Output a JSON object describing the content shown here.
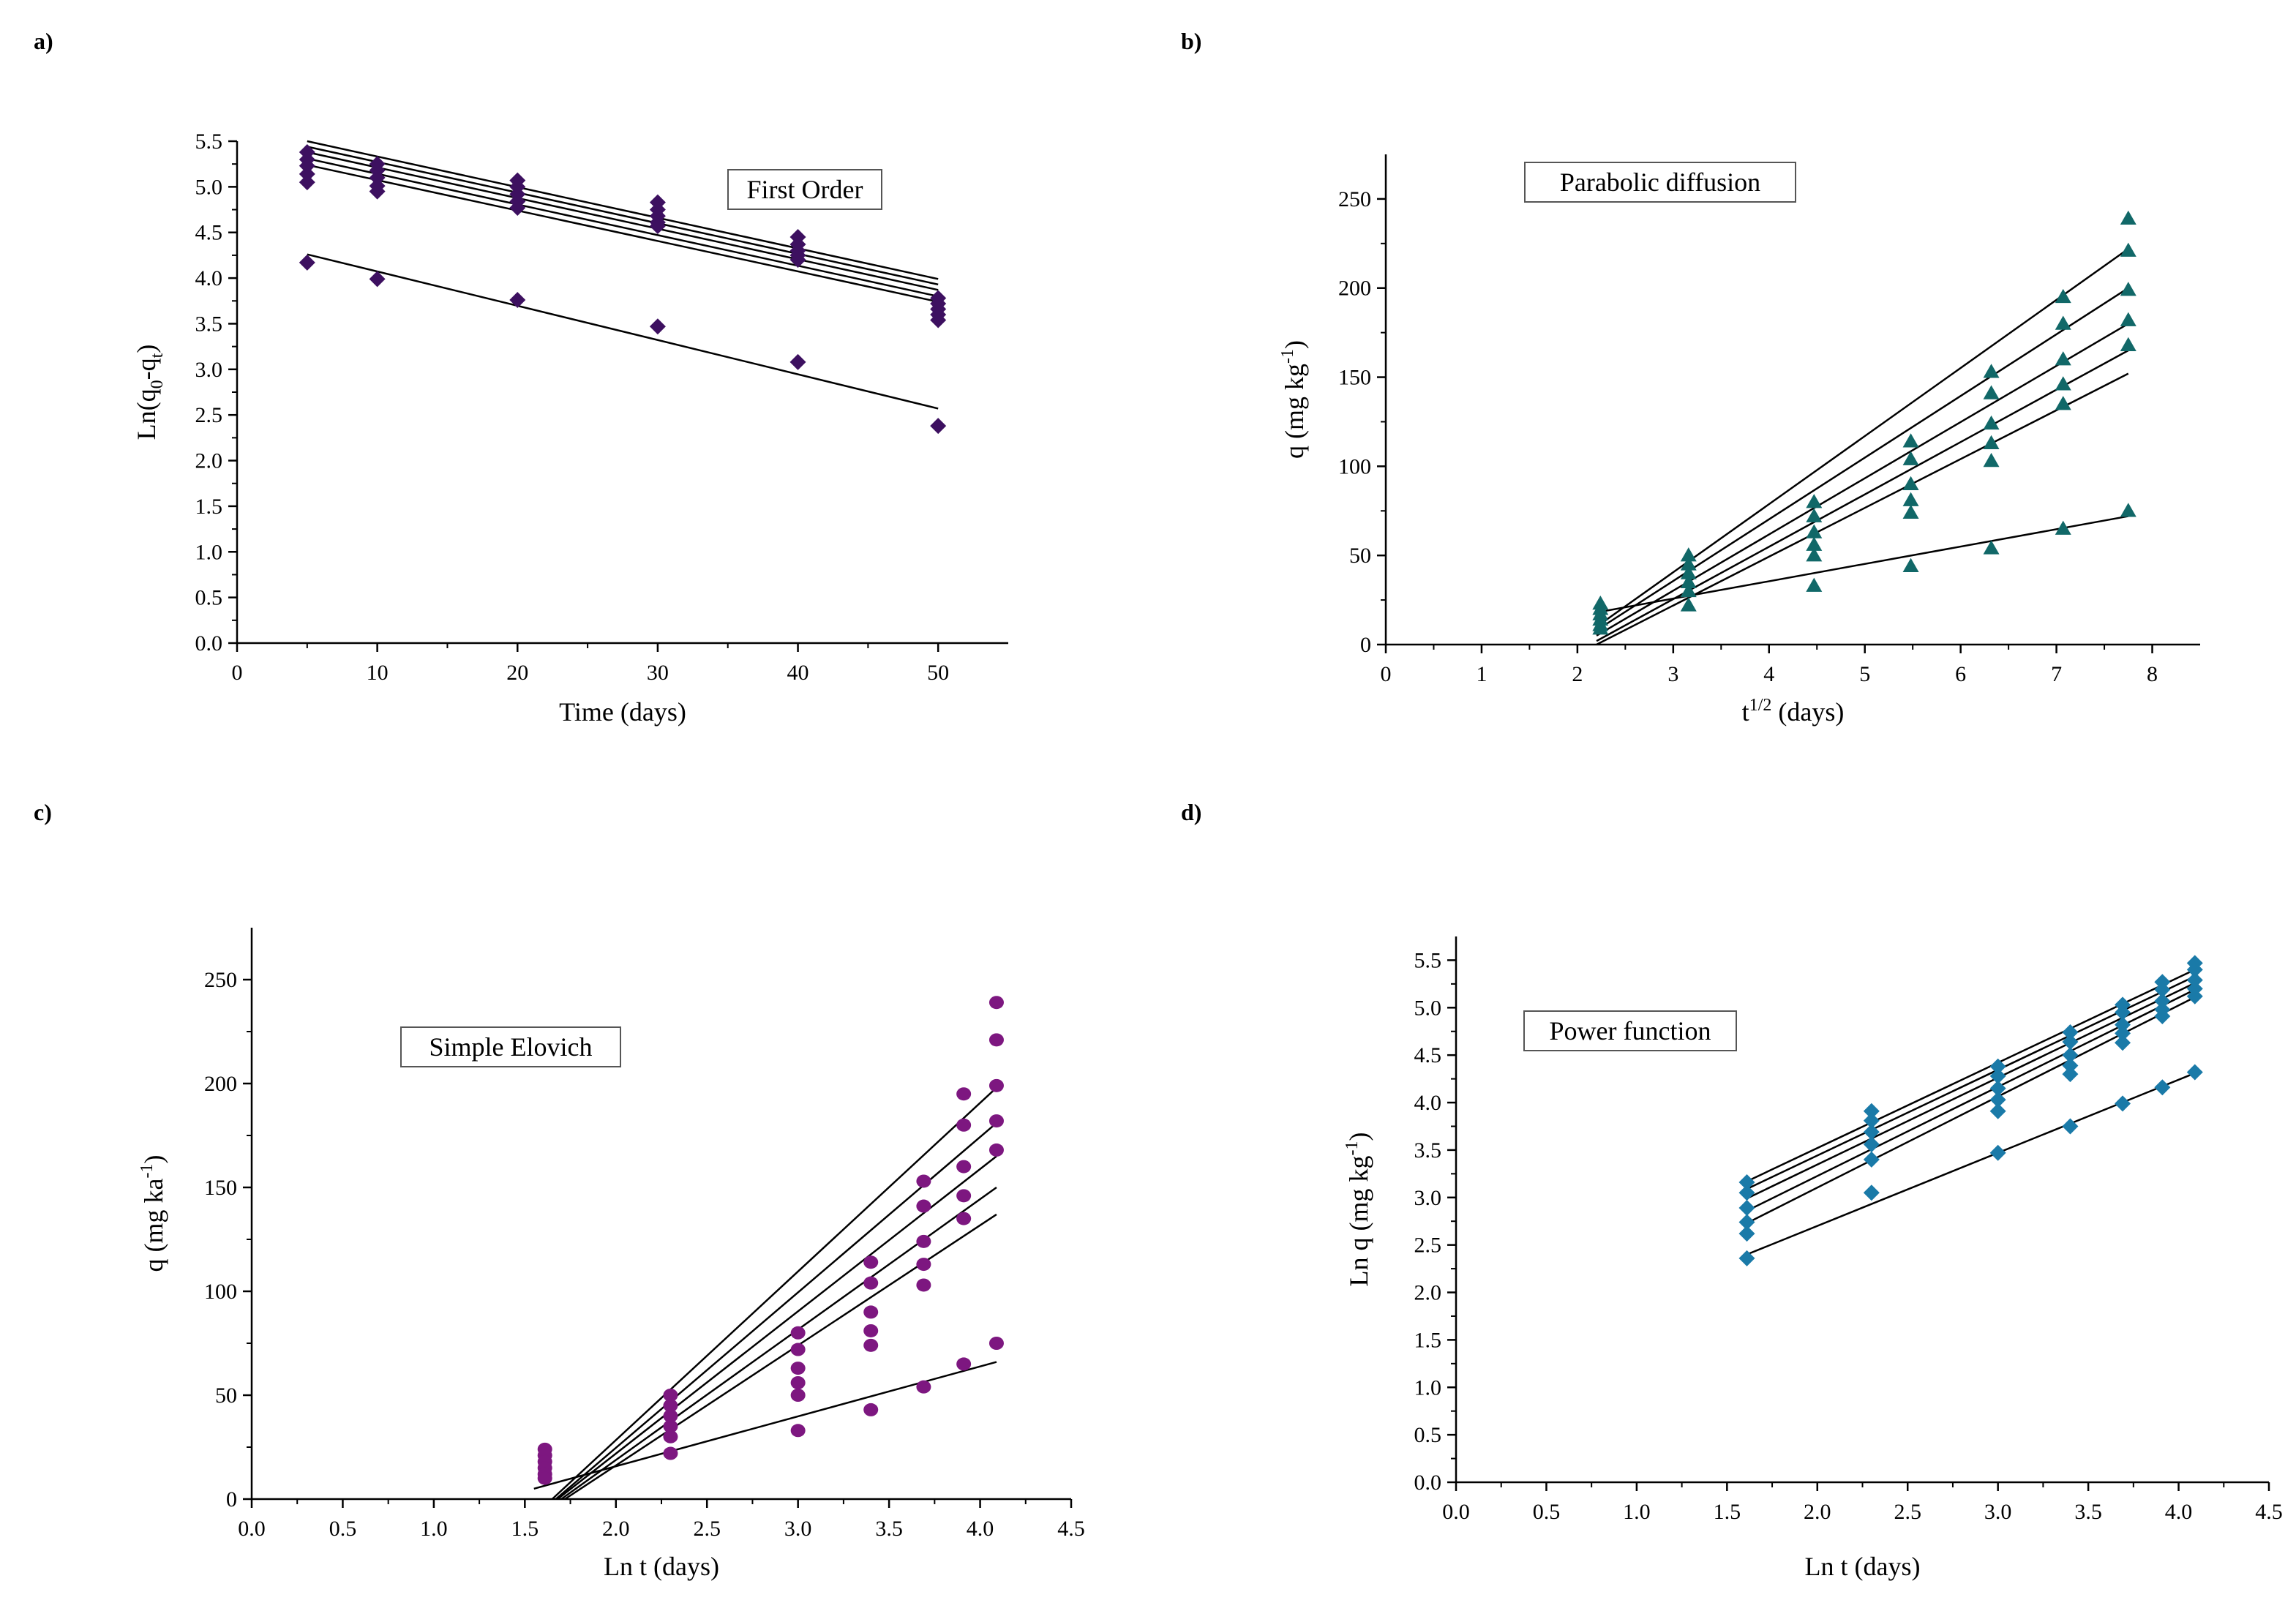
{
  "panels": [
    {
      "label": "a)",
      "chart_data": {
        "type": "scatter",
        "title": "First Order",
        "xlabel": "Time (days)",
        "ylabel_parts": [
          "Ln(q",
          "0",
          "-q",
          "t",
          ")"
        ],
        "xlim": [
          0,
          55
        ],
        "ylim": [
          0,
          5.5
        ],
        "xticks": [
          0,
          10,
          20,
          30,
          40,
          50
        ],
        "yticks": [
          0.0,
          0.5,
          1.0,
          1.5,
          2.0,
          2.5,
          3.0,
          3.5,
          4.0,
          4.5,
          5.0,
          5.5
        ],
        "ytick_format": 1,
        "xtick_format": 0,
        "marker": "diamond",
        "color": "#3d1060",
        "series": [
          {
            "name": "s1",
            "x": [
              5,
              10,
              20,
              30,
              40,
              50
            ],
            "y": [
              5.38,
              5.25,
              5.07,
              4.83,
              4.45,
              3.78
            ],
            "fit": [
              5.5,
              3.99
            ]
          },
          {
            "name": "s2",
            "x": [
              5,
              10,
              20,
              30,
              40,
              50
            ],
            "y": [
              5.3,
              5.18,
              5.0,
              4.75,
              4.37,
              3.72
            ],
            "fit": [
              5.44,
              3.93
            ]
          },
          {
            "name": "s3",
            "x": [
              5,
              10,
              20,
              30,
              40,
              50
            ],
            "y": [
              5.23,
              5.1,
              4.92,
              4.68,
              4.3,
              3.66
            ],
            "fit": [
              5.38,
              3.87
            ]
          },
          {
            "name": "s4",
            "x": [
              5,
              10,
              20,
              30,
              40,
              50
            ],
            "y": [
              5.14,
              5.01,
              4.84,
              4.61,
              4.25,
              3.6
            ],
            "fit": [
              5.31,
              3.8
            ]
          },
          {
            "name": "s5",
            "x": [
              5,
              10,
              20,
              30,
              40,
              50
            ],
            "y": [
              5.05,
              4.95,
              4.77,
              4.57,
              4.2,
              3.54
            ],
            "fit": [
              5.24,
              3.74
            ]
          },
          {
            "name": "s6",
            "x": [
              5,
              10,
              20,
              30,
              40,
              50
            ],
            "y": [
              4.17,
              3.99,
              3.76,
              3.47,
              3.08,
              2.38
            ],
            "fit": [
              4.26,
              2.57
            ]
          }
        ]
      }
    },
    {
      "label": "b)",
      "chart_data": {
        "type": "scatter",
        "title": "Parabolic diffusion",
        "xlabel_parts": [
          "t",
          "1/2",
          " (days)"
        ],
        "ylabel_parts": [
          "q (mg kg",
          "-1",
          ")"
        ],
        "xlim": [
          0,
          8.5
        ],
        "ylim": [
          0,
          275
        ],
        "xticks": [
          0,
          1,
          2,
          3,
          4,
          5,
          6,
          7,
          8
        ],
        "yticks": [
          0,
          50,
          100,
          150,
          200,
          250
        ],
        "ytick_format": 0,
        "xtick_format": 0,
        "marker": "triangle",
        "color": "#116868",
        "series": [
          {
            "name": "s1",
            "x": [
              2.24,
              3.16,
              4.47,
              5.48,
              6.32,
              7.07,
              7.75
            ],
            "y": [
              23,
              50,
              80,
              114,
              153,
              195,
              239
            ],
            "fit": [
              2.2,
              10,
              7.75,
              222
            ]
          },
          {
            "name": "s2",
            "x": [
              2.24,
              3.16,
              4.47,
              5.48,
              6.32,
              7.07,
              7.75
            ],
            "y": [
              20,
              45,
              72,
              104,
              141,
              180,
              221
            ],
            "fit": [
              2.2,
              8,
              7.75,
              200
            ]
          },
          {
            "name": "s3",
            "x": [
              2.24,
              3.16,
              4.47,
              5.48,
              6.32,
              7.07,
              7.75
            ],
            "y": [
              17,
              40,
              63,
              90,
              124,
              160,
              199
            ],
            "fit": [
              2.2,
              5,
              7.75,
              180
            ]
          },
          {
            "name": "s4",
            "x": [
              2.24,
              3.16,
              4.47,
              5.48,
              6.32,
              7.07,
              7.75
            ],
            "y": [
              14,
              35,
              56,
              81,
              113,
              146,
              182
            ],
            "fit": [
              2.2,
              2,
              7.75,
              165
            ]
          },
          {
            "name": "s5",
            "x": [
              2.24,
              3.16,
              4.47,
              5.48,
              6.32,
              7.07,
              7.75
            ],
            "y": [
              11,
              30,
              50,
              74,
              103,
              135,
              168
            ],
            "fit": [
              2.2,
              0,
              7.75,
              152
            ]
          },
          {
            "name": "s6",
            "x": [
              2.24,
              3.16,
              4.47,
              5.48,
              6.32,
              7.07,
              7.75
            ],
            "y": [
              9,
              22,
              33,
              44,
              54,
              65,
              75
            ],
            "fit": [
              2.2,
              18,
              7.75,
              72
            ]
          }
        ]
      }
    },
    {
      "label": "c)",
      "chart_data": {
        "type": "scatter",
        "title": "Simple Elovich",
        "xlabel": "Ln t (days)",
        "ylabel_parts": [
          "q (mg ka",
          "-1",
          ")"
        ],
        "xlim": [
          0,
          4.5
        ],
        "ylim": [
          0,
          275
        ],
        "xticks": [
          0.0,
          0.5,
          1.0,
          1.5,
          2.0,
          2.5,
          3.0,
          3.5,
          4.0,
          4.5
        ],
        "yticks": [
          0,
          50,
          100,
          150,
          200,
          250
        ],
        "ytick_format": 0,
        "xtick_format": 1,
        "marker": "circle",
        "color": "#7d1780",
        "series": [
          {
            "name": "s1",
            "x": [
              1.61,
              2.3,
              3.0,
              3.4,
              3.69,
              3.91,
              4.09
            ],
            "y": [
              24,
              50,
              80,
              114,
              153,
              195,
              239
            ],
            "fit": [
              1.65,
              0,
              4.09,
              198
            ]
          },
          {
            "name": "s2",
            "x": [
              1.61,
              2.3,
              3.0,
              3.4,
              3.69,
              3.91,
              4.09
            ],
            "y": [
              21,
              45,
              72,
              104,
              141,
              180,
              221
            ],
            "fit": [
              1.67,
              0,
              4.09,
              181
            ]
          },
          {
            "name": "s3",
            "x": [
              1.61,
              2.3,
              3.0,
              3.4,
              3.69,
              3.91,
              4.09
            ],
            "y": [
              18,
              40,
              63,
              90,
              124,
              160,
              199
            ],
            "fit": [
              1.68,
              0,
              4.09,
              165
            ]
          },
          {
            "name": "s4",
            "x": [
              1.61,
              2.3,
              3.0,
              3.4,
              3.69,
              3.91,
              4.09
            ],
            "y": [
              15,
              35,
              56,
              81,
              113,
              146,
              182
            ],
            "fit": [
              1.7,
              0,
              4.09,
              150
            ]
          },
          {
            "name": "s5",
            "x": [
              1.61,
              2.3,
              3.0,
              3.4,
              3.69,
              3.91,
              4.09
            ],
            "y": [
              12,
              30,
              50,
              74,
              103,
              135,
              168
            ],
            "fit": [
              1.72,
              0,
              4.09,
              137
            ]
          },
          {
            "name": "s6",
            "x": [
              1.61,
              2.3,
              3.0,
              3.4,
              3.69,
              3.91,
              4.09
            ],
            "y": [
              10,
              22,
              33,
              43,
              54,
              65,
              75
            ],
            "fit": [
              1.55,
              5,
              4.09,
              66
            ]
          }
        ]
      }
    },
    {
      "label": "d)",
      "chart_data": {
        "type": "scatter",
        "title": "Power function",
        "xlabel": "Ln t (days)",
        "ylabel_parts": [
          "Ln q (mg kg",
          "-1",
          ")"
        ],
        "xlim": [
          0,
          4.5
        ],
        "ylim": [
          0,
          5.75
        ],
        "xticks": [
          0.0,
          0.5,
          1.0,
          1.5,
          2.0,
          2.5,
          3.0,
          3.5,
          4.0,
          4.5
        ],
        "yticks": [
          0.0,
          0.5,
          1.0,
          1.5,
          2.0,
          2.5,
          3.0,
          3.5,
          4.0,
          4.5,
          5.0,
          5.5
        ],
        "ytick_format": 1,
        "xtick_format": 1,
        "marker": "diamond",
        "color": "#1a7aa8",
        "series": [
          {
            "name": "s1",
            "x": [
              1.61,
              2.3,
              3.0,
              3.4,
              3.69,
              3.91,
              4.09
            ],
            "y": [
              3.16,
              3.91,
              4.38,
              4.74,
              5.03,
              5.27,
              5.47
            ],
            "fit": [
              1.61,
              3.17,
              4.09,
              5.4
            ]
          },
          {
            "name": "s2",
            "x": [
              1.61,
              2.3,
              3.0,
              3.4,
              3.69,
              3.91,
              4.09
            ],
            "y": [
              3.05,
              3.81,
              4.28,
              4.64,
              4.95,
              5.19,
              5.4
            ],
            "fit": [
              1.61,
              3.09,
              4.09,
              5.33
            ]
          },
          {
            "name": "s3",
            "x": [
              1.61,
              2.3,
              3.0,
              3.4,
              3.69,
              3.91,
              4.09
            ],
            "y": [
              2.89,
              3.69,
              4.15,
              4.5,
              4.82,
              5.07,
              5.29
            ],
            "fit": [
              1.61,
              2.99,
              4.09,
              5.26
            ]
          },
          {
            "name": "s4",
            "x": [
              1.61,
              2.3,
              3.0,
              3.4,
              3.69,
              3.91,
              4.09
            ],
            "y": [
              2.74,
              3.56,
              4.03,
              4.39,
              4.73,
              4.98,
              5.2
            ],
            "fit": [
              1.61,
              2.86,
              4.09,
              5.19
            ]
          },
          {
            "name": "s5",
            "x": [
              1.61,
              2.3,
              3.0,
              3.4,
              3.69,
              3.91,
              4.09
            ],
            "y": [
              2.62,
              3.4,
              3.91,
              4.3,
              4.63,
              4.91,
              5.12
            ],
            "fit": [
              1.61,
              2.73,
              4.09,
              5.11
            ]
          },
          {
            "name": "s6",
            "x": [
              1.61,
              2.3,
              3.0,
              3.4,
              3.69,
              3.91,
              4.09
            ],
            "y": [
              2.36,
              3.05,
              3.47,
              3.75,
              3.99,
              4.16,
              4.32
            ],
            "fit": [
              1.61,
              2.4,
              4.09,
              4.31
            ]
          }
        ]
      }
    }
  ]
}
